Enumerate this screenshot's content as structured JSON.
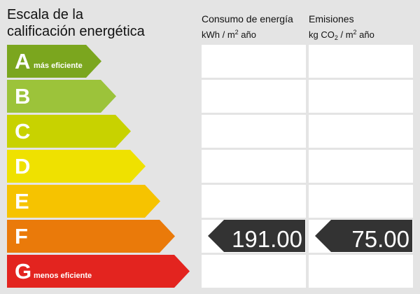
{
  "title_line1": "Escala de la",
  "title_line2": "calificación energética",
  "energy_header": {
    "line1": "Consumo de energía",
    "unit_pre": "kWh / m",
    "unit_sup": "2",
    "unit_post": " año"
  },
  "emissions_header": {
    "line1": "Emisiones",
    "unit_pre": "kg CO",
    "unit_sub": "2",
    "unit_mid": " / m",
    "unit_sup": "2",
    "unit_post": " año"
  },
  "grades": [
    {
      "letter": "A",
      "note": "más eficiente",
      "color": "#7ba61e"
    },
    {
      "letter": "B",
      "note": "",
      "color": "#9cc33a"
    },
    {
      "letter": "C",
      "note": "",
      "color": "#c8d200"
    },
    {
      "letter": "D",
      "note": "",
      "color": "#efe100"
    },
    {
      "letter": "E",
      "note": "",
      "color": "#f6c300"
    },
    {
      "letter": "F",
      "note": "",
      "color": "#ea7a0a"
    },
    {
      "letter": "G",
      "note": "menos eficiente",
      "color": "#e3241f"
    }
  ],
  "rating": {
    "grade": "F",
    "energy_value": "191.00",
    "emissions_value": "75.00",
    "marker_color": "#333333"
  }
}
